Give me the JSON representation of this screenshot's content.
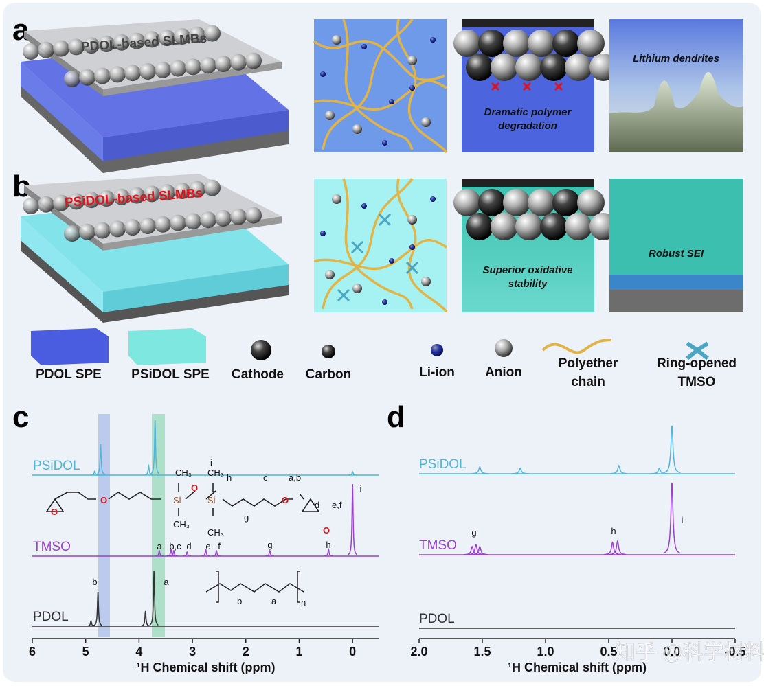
{
  "panels": {
    "a": {
      "label": "a",
      "title": "PDOL-based SLMBs",
      "caption_degradation": [
        "Dramatic polymer",
        "degradation"
      ],
      "caption_dendrite": "Lithium dendrites"
    },
    "b": {
      "label": "b",
      "title": "PSiDOL-based SLMBs",
      "caption_stability": [
        "Superior oxidative",
        "stability"
      ],
      "caption_sei": "Robust SEI"
    },
    "legend": [
      {
        "lines": [
          "PDOL SPE"
        ]
      },
      {
        "lines": [
          "PSiDOL SPE"
        ]
      },
      {
        "lines": [
          "Cathode"
        ]
      },
      {
        "lines": [
          "Carbon"
        ]
      },
      {
        "lines": [
          "Li-ion"
        ]
      },
      {
        "lines": [
          "Anion"
        ]
      },
      {
        "lines": [
          "Polyether",
          "chain"
        ]
      },
      {
        "lines": [
          "Ring-opened",
          "TMSO"
        ]
      }
    ],
    "c": {
      "label": "c",
      "xlabel": "¹H Chemical shift (ppm)",
      "xlim": [
        6,
        -0.5
      ],
      "xticks": [
        6,
        5,
        4,
        3,
        2,
        1,
        0
      ],
      "spectra": [
        {
          "name": "PSiDOL",
          "color": "#4fb6de",
          "peaks": [
            {
              "shift": 4.83,
              "intensity": 6
            },
            {
              "shift": 4.72,
              "intensity": 45
            },
            {
              "shift": 3.82,
              "intensity": 14
            },
            {
              "shift": 3.7,
              "intensity": 80
            },
            {
              "shift": 0.0,
              "intensity": 5
            }
          ]
        },
        {
          "name": "TMSO",
          "color": "#9a3fd0",
          "peaks": [
            {
              "shift": 3.62,
              "intensity": 8
            },
            {
              "shift": 3.4,
              "intensity": 10
            },
            {
              "shift": 3.35,
              "intensity": 8
            },
            {
              "shift": 3.1,
              "intensity": 6
            },
            {
              "shift": 2.75,
              "intensity": 10
            },
            {
              "shift": 2.55,
              "intensity": 8
            },
            {
              "shift": 1.55,
              "intensity": 8
            },
            {
              "shift": 0.45,
              "intensity": 10
            },
            {
              "shift": 0.0,
              "intensity": 105
            }
          ]
        },
        {
          "name": "PDOL",
          "color": "#333333",
          "peaks": [
            {
              "shift": 4.9,
              "intensity": 8
            },
            {
              "shift": 4.77,
              "intensity": 50
            },
            {
              "shift": 3.88,
              "intensity": 22
            },
            {
              "shift": 3.72,
              "intensity": 80
            }
          ]
        }
      ],
      "tmso_peak_labels": [
        "a",
        "b,c",
        "d",
        "e",
        "f",
        "g",
        "h",
        "i"
      ],
      "pdol_peak_labels": [
        "b",
        "a"
      ],
      "tmso_structure": [
        "CH₃",
        "CH₃",
        "Si",
        "O",
        "Si",
        "CH₃",
        "CH₃",
        "i",
        "h",
        "g",
        "c",
        "a,b",
        "d",
        "e,f"
      ],
      "pdol_structure": [
        "b",
        "a",
        "n"
      ]
    },
    "d": {
      "label": "d",
      "xlabel": "¹H Chemical shift (ppm)",
      "xlim": [
        2.0,
        -0.5
      ],
      "xticks": [
        {
          "value": 2.0,
          "label": "2.0"
        },
        {
          "value": 1.5,
          "label": "1.5"
        },
        {
          "value": 1.0,
          "label": "1.0"
        },
        {
          "value": 0.5,
          "label": "0.5"
        },
        {
          "value": 0.0,
          "label": "0.0"
        },
        {
          "value": -0.5,
          "label": "-0.5"
        }
      ],
      "spectra": [
        {
          "name": "PSiDOL",
          "color": "#4fb6de",
          "peaks": [
            {
              "shift": 1.52,
              "intensity": 10
            },
            {
              "shift": 1.2,
              "intensity": 8
            },
            {
              "shift": 0.42,
              "intensity": 12
            },
            {
              "shift": 0.1,
              "intensity": 8
            },
            {
              "shift": 0.0,
              "intensity": 70
            }
          ]
        },
        {
          "name": "TMSO",
          "color": "#9a3fd0",
          "peaks": [
            {
              "shift": 1.58,
              "intensity": 12
            },
            {
              "shift": 1.55,
              "intensity": 15
            },
            {
              "shift": 1.52,
              "intensity": 12
            },
            {
              "shift": 0.47,
              "intensity": 18
            },
            {
              "shift": 0.43,
              "intensity": 20
            },
            {
              "shift": 0.0,
              "intensity": 105
            }
          ]
        },
        {
          "name": "PDOL",
          "color": "#333333",
          "peaks": []
        }
      ],
      "peak_labels": [
        "g",
        "h",
        "i"
      ]
    }
  },
  "watermark": "知乎 @科学材料站"
}
